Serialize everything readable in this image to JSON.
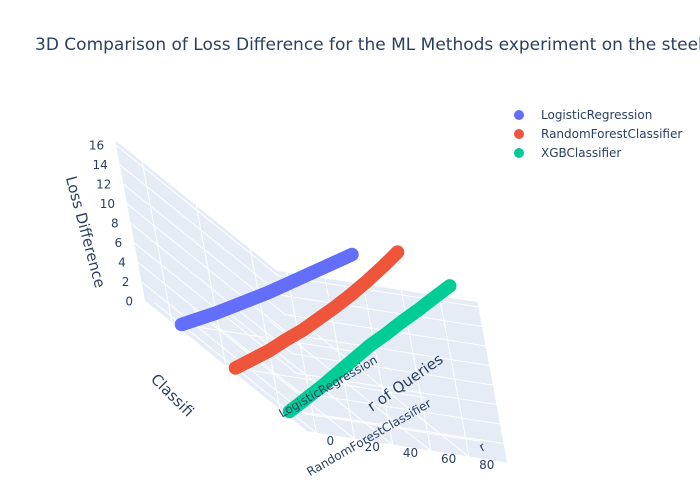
{
  "chart_data": {
    "type": "scatter3d",
    "title": "3D Comparison of Loss Difference for the ML Methods experiment on the steel",
    "x_axis": {
      "label": "Classifier",
      "categories": [
        "LogisticRegression",
        "RandomForestClassifier",
        "XGBClassifier"
      ]
    },
    "y_axis": {
      "label": "Number of Queries",
      "range": [
        -5,
        100
      ],
      "ticks": [
        0,
        20,
        40,
        60,
        80
      ]
    },
    "z_axis": {
      "label": "Loss Difference",
      "range": [
        0,
        16
      ],
      "ticks": [
        0,
        2,
        4,
        6,
        8,
        10,
        12,
        14,
        16
      ]
    },
    "legend_position": "top-right",
    "series": [
      {
        "name": "LogisticRegression",
        "color": "#636efa",
        "x": "LogisticRegression",
        "queries": [
          0,
          10,
          20,
          30,
          40,
          50,
          60,
          70,
          80,
          90,
          99
        ],
        "loss": [
          0.0,
          0.9,
          1.8,
          2.8,
          3.8,
          4.8,
          5.9,
          7.0,
          8.1,
          9.2,
          10.2
        ]
      },
      {
        "name": "RandomForestClassifier",
        "color": "#ef553b",
        "x": "RandomForestClassifier",
        "queries": [
          0,
          10,
          20,
          30,
          40,
          50,
          60,
          70,
          80,
          90,
          99
        ],
        "loss": [
          0.0,
          1.2,
          2.4,
          3.8,
          5.1,
          6.6,
          8.1,
          9.7,
          11.4,
          13.2,
          14.9
        ]
      },
      {
        "name": "XGBClassifier",
        "color": "#00cc96",
        "x": "XGBClassifier",
        "queries": [
          0,
          10,
          20,
          30,
          40,
          50,
          60,
          70,
          80,
          90,
          99
        ],
        "loss": [
          0.0,
          1.6,
          3.2,
          4.9,
          6.6,
          8.3,
          9.8,
          11.4,
          12.9,
          14.5,
          15.9
        ]
      }
    ]
  },
  "axis_tail_text": {
    "x_title_visible": "Classifi",
    "y_title_visible": "r of Queries",
    "x_tick_cut": "r"
  }
}
